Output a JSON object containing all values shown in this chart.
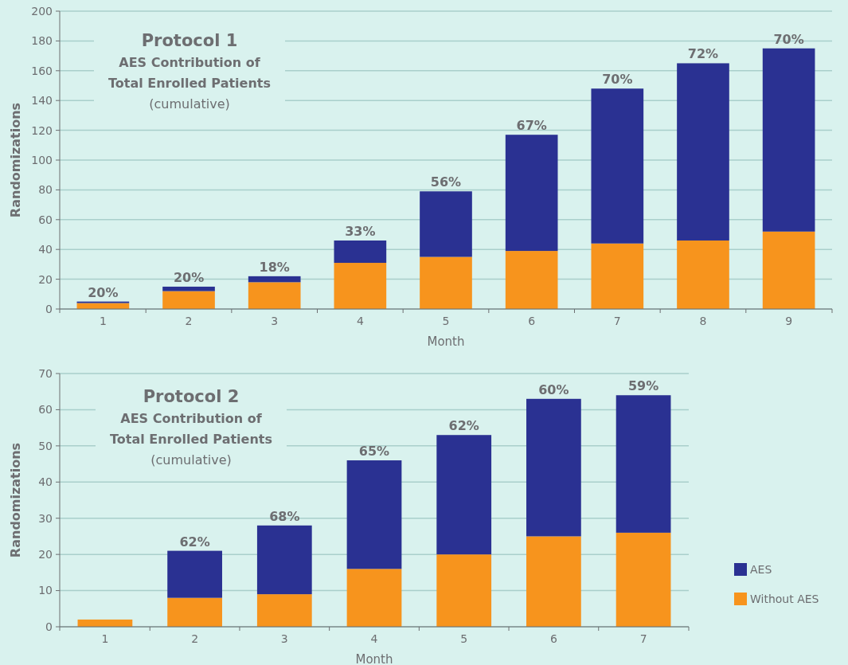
{
  "chart_data": [
    {
      "type": "bar",
      "stacked": true,
      "title": "Protocol 1",
      "subtitle": "AES Contribution of Total Enrolled Patients",
      "xlabel": "Month",
      "ylabel": "Randomizations",
      "categories": [
        "1",
        "2",
        "3",
        "4",
        "5",
        "6",
        "7",
        "8",
        "9"
      ],
      "ylim": [
        0,
        200
      ],
      "yticks": [
        0,
        20,
        40,
        60,
        80,
        100,
        120,
        140,
        160,
        180,
        200
      ],
      "grid": "y",
      "legend": false,
      "annotations": [
        "(cumulative)",
        {
          "text": "20%",
          "x": "1",
          "y": 5
        },
        {
          "text": "20%",
          "x": "2",
          "y": 15
        },
        {
          "text": "18%",
          "x": "3",
          "y": 22
        },
        {
          "text": "33%",
          "x": "4",
          "y": 46
        },
        {
          "text": "56%",
          "x": "5",
          "y": 79
        },
        {
          "text": "67%",
          "x": "6",
          "y": 117
        },
        {
          "text": "70%",
          "x": "7",
          "y": 148
        },
        {
          "text": "72%",
          "x": "8",
          "y": 165
        },
        {
          "text": "70%",
          "x": "9",
          "y": 175
        }
      ],
      "series": [
        {
          "color": "#f7941d",
          "values": [
            4,
            12,
            18,
            31,
            35,
            39,
            44,
            46,
            52
          ]
        },
        {
          "color": "#2a3192",
          "values": [
            1,
            3,
            4,
            15,
            44,
            78,
            104,
            119,
            123
          ]
        }
      ]
    },
    {
      "type": "bar",
      "stacked": true,
      "title": "Protocol 2",
      "subtitle": "AES Contribution of Total Enrolled Patients",
      "xlabel": "Month",
      "ylabel": "Randomizations",
      "categories": [
        "1",
        "2",
        "3",
        "4",
        "5",
        "6",
        "7"
      ],
      "ylim": [
        0,
        70
      ],
      "yticks": [
        0,
        10,
        20,
        30,
        40,
        50,
        60,
        70
      ],
      "grid": "y",
      "legend": "right",
      "annotations": [
        "(cumulative)",
        {
          "text": "62%",
          "x": "2",
          "y": 21
        },
        {
          "text": "68%",
          "x": "3",
          "y": 28
        },
        {
          "text": "65%",
          "x": "4",
          "y": 46
        },
        {
          "text": "62%",
          "x": "5",
          "y": 53
        },
        {
          "text": "60%",
          "x": "6",
          "y": 63
        },
        {
          "text": "59%",
          "x": "7",
          "y": 64
        }
      ],
      "series": [
        {
          "name": "Without AES",
          "color": "#f7941d",
          "values": [
            2,
            8,
            9,
            16,
            20,
            25,
            26
          ]
        },
        {
          "name": "AES",
          "color": "#2a3192",
          "values": [
            0,
            13,
            19,
            30,
            33,
            38,
            38
          ]
        }
      ]
    }
  ]
}
